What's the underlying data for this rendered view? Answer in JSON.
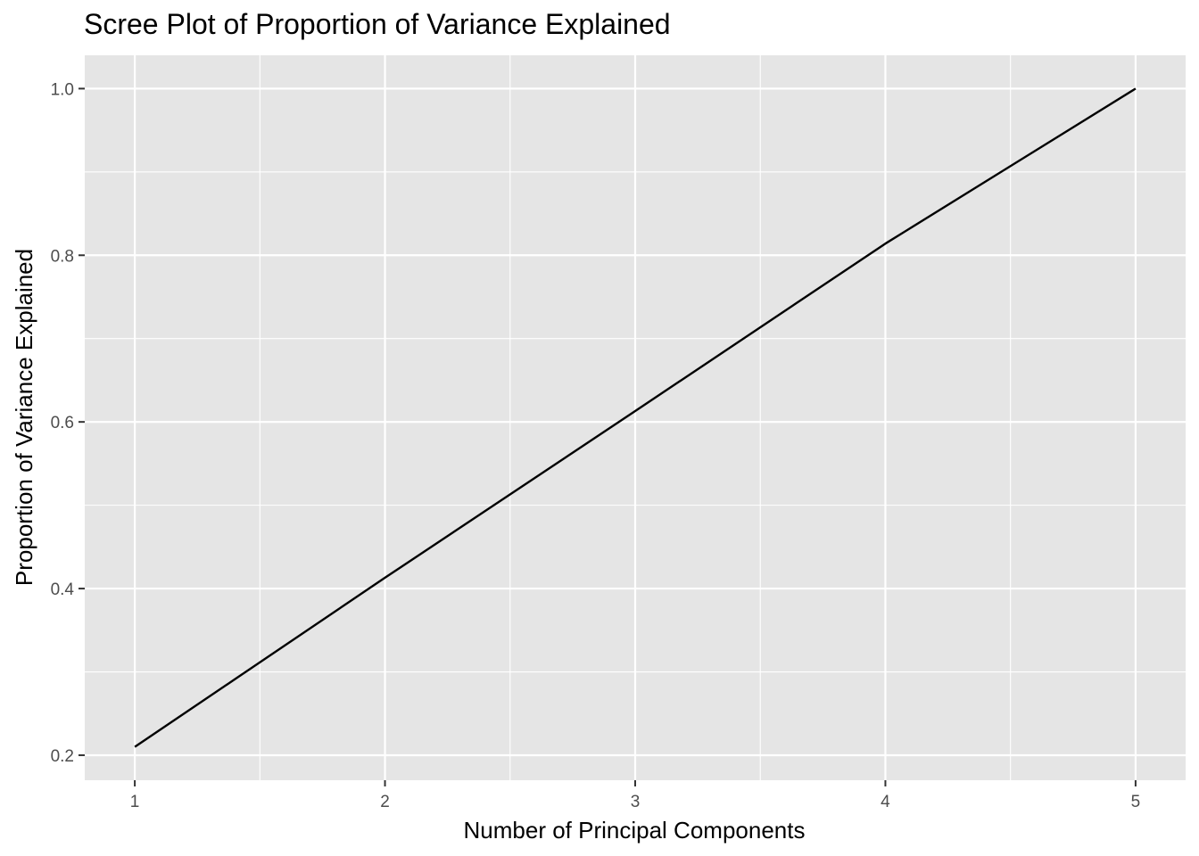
{
  "chart_data": {
    "type": "line",
    "title": "Scree Plot of Proportion of Variance Explained",
    "xlabel": "Number of Principal Components",
    "ylabel": "Proportion of Variance Explained",
    "x": [
      1,
      2,
      3,
      4,
      5
    ],
    "series": [
      {
        "values": [
          0.21,
          0.413,
          0.613,
          0.814,
          1.0
        ]
      }
    ],
    "x_ticks": [
      1,
      2,
      3,
      4,
      5
    ],
    "y_ticks": [
      0.2,
      0.4,
      0.6,
      0.8,
      1.0
    ],
    "x_tick_labels": [
      "1",
      "2",
      "3",
      "4",
      "5"
    ],
    "y_tick_labels": [
      "0.2",
      "0.4",
      "0.6",
      "0.8",
      "1.0"
    ],
    "xlim": [
      0.8,
      5.2
    ],
    "ylim": [
      0.17,
      1.04
    ],
    "grid": true,
    "legend": "none",
    "colors": {
      "panel": "#e5e5e5",
      "grid": "#ffffff",
      "line": "#000000"
    }
  }
}
